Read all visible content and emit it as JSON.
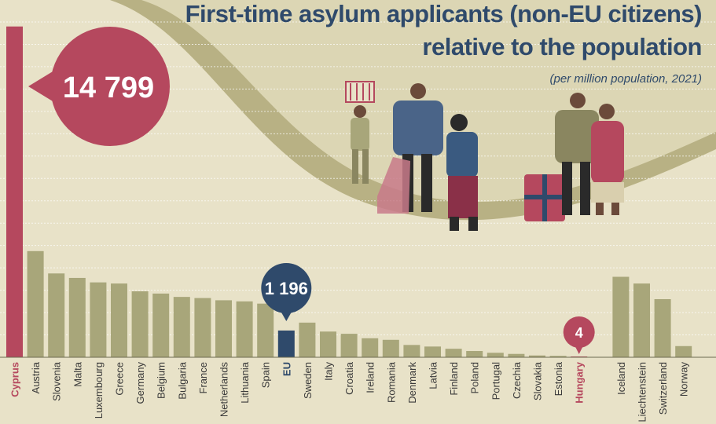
{
  "title_line1": "First-time asylum applicants (non-EU citizens)",
  "title_line2": "relative to the population",
  "subtitle": "(per million population, 2021)",
  "colors": {
    "background": "#e8e2c8",
    "wave": "#b8b184",
    "bar": "#a8a67a",
    "highlight": "#b5485e",
    "eu": "#2f4a6b",
    "title": "#2f4a6b"
  },
  "chart_data": {
    "type": "bar",
    "title": "First-time asylum applicants (non-EU citizens) relative to the population",
    "subtitle": "(per million population, 2021)",
    "categories": [
      "Cyprus",
      "Austria",
      "Slovenia",
      "Malta",
      "Luxembourg",
      "Greece",
      "Germany",
      "Belgium",
      "Bulgaria",
      "France",
      "Netherlands",
      "Lithuania",
      "Spain",
      "EU",
      "Sweden",
      "Italy",
      "Croatia",
      "Ireland",
      "Romania",
      "Denmark",
      "Latvia",
      "Finland",
      "Poland",
      "Portugal",
      "Czechia",
      "Slovakia",
      "Estonia",
      "Hungary",
      "",
      "Iceland",
      "Liechtenstein",
      "Switzerland",
      "Norway"
    ],
    "values": [
      14799,
      4750,
      3750,
      3550,
      3350,
      3300,
      2950,
      2850,
      2700,
      2650,
      2550,
      2500,
      2400,
      1196,
      1550,
      1150,
      1050,
      850,
      780,
      550,
      480,
      380,
      280,
      200,
      150,
      80,
      60,
      4,
      null,
      3600,
      3300,
      2600,
      500
    ],
    "highlights": {
      "Cyprus": "highlight",
      "EU": "eu",
      "Hungary": "highlight"
    },
    "callouts": [
      {
        "category": "Cyprus",
        "label": "14 799"
      },
      {
        "category": "EU",
        "label": "1 196"
      },
      {
        "category": "Hungary",
        "label": "4"
      }
    ],
    "ylim": [
      0,
      15000
    ],
    "grid": true
  }
}
